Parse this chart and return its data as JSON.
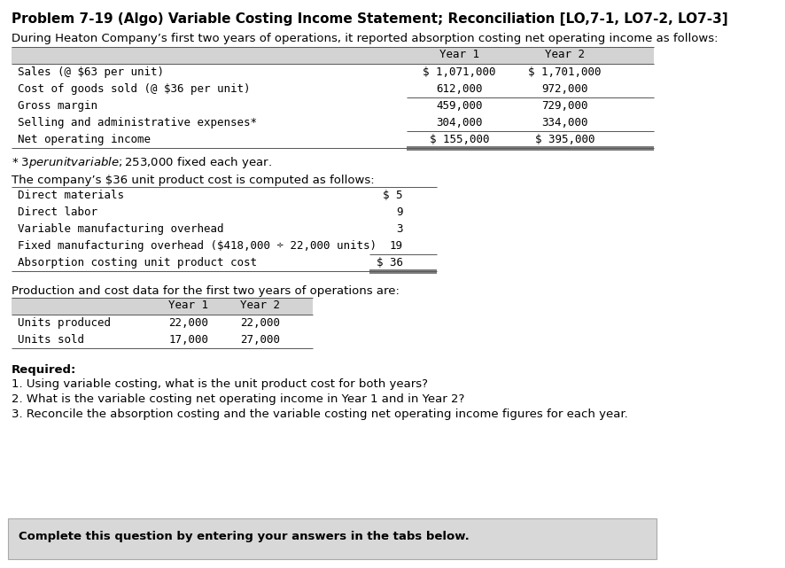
{
  "title": "Problem 7-19 (Algo) Variable Costing Income Statement; Reconciliation [LO,7-1, LO7-2, LO7-3]",
  "intro_text": "During Heaton Company’s first two years of operations, it reported absorption costing net operating income as follows:",
  "table1": {
    "col_headers": [
      "Year 1",
      "Year 2"
    ],
    "header_bg": "#d3d3d3",
    "rows": [
      [
        "Sales (@ $63 per unit)",
        "$ 1,071,000",
        "$ 1,701,000"
      ],
      [
        "Cost of goods sold (@ $36 per unit)",
        "612,000",
        "972,000"
      ],
      [
        "Gross margin",
        "459,000",
        "729,000"
      ],
      [
        "Selling and administrative expenses*",
        "304,000",
        "334,000"
      ],
      [
        "Net operating income",
        "$ 155,000",
        "$ 395,000"
      ]
    ],
    "underline_after": [
      1,
      3
    ],
    "double_underline_after": [
      4
    ]
  },
  "footnote": "* $3 per unit variable; $253,000 fixed each year.",
  "unit_cost_intro": "The company’s $36 unit product cost is computed as follows:",
  "table2": {
    "rows": [
      [
        "Direct materials",
        "$ 5"
      ],
      [
        "Direct labor",
        "9"
      ],
      [
        "Variable manufacturing overhead",
        "3"
      ],
      [
        "Fixed manufacturing overhead ($418,000 ÷ 22,000 units)",
        "19"
      ],
      [
        "Absorption costing unit product cost",
        "$ 36"
      ]
    ],
    "underline_after": [
      3
    ],
    "double_underline_after": [
      4
    ]
  },
  "prod_intro": "Production and cost data for the first two years of operations are:",
  "table3": {
    "col_headers": [
      "Year 1",
      "Year 2"
    ],
    "header_bg": "#d3d3d3",
    "rows": [
      [
        "Units produced",
        "22,000",
        "22,000"
      ],
      [
        "Units sold",
        "17,000",
        "27,000"
      ]
    ]
  },
  "required_label": "Required:",
  "required_items": [
    "1. Using variable costing, what is the unit product cost for both years?",
    "2. What is the variable costing net operating income in Year 1 and in Year 2?",
    "3. Reconcile the absorption costing and the variable costing net operating income figures for each year."
  ],
  "footer_text": "Complete this question by entering your answers in the tabs below.",
  "bg_color": "#ffffff",
  "footer_bg": "#d8d8d8",
  "mono_font": "monospace",
  "sans_font": "DejaVu Sans"
}
